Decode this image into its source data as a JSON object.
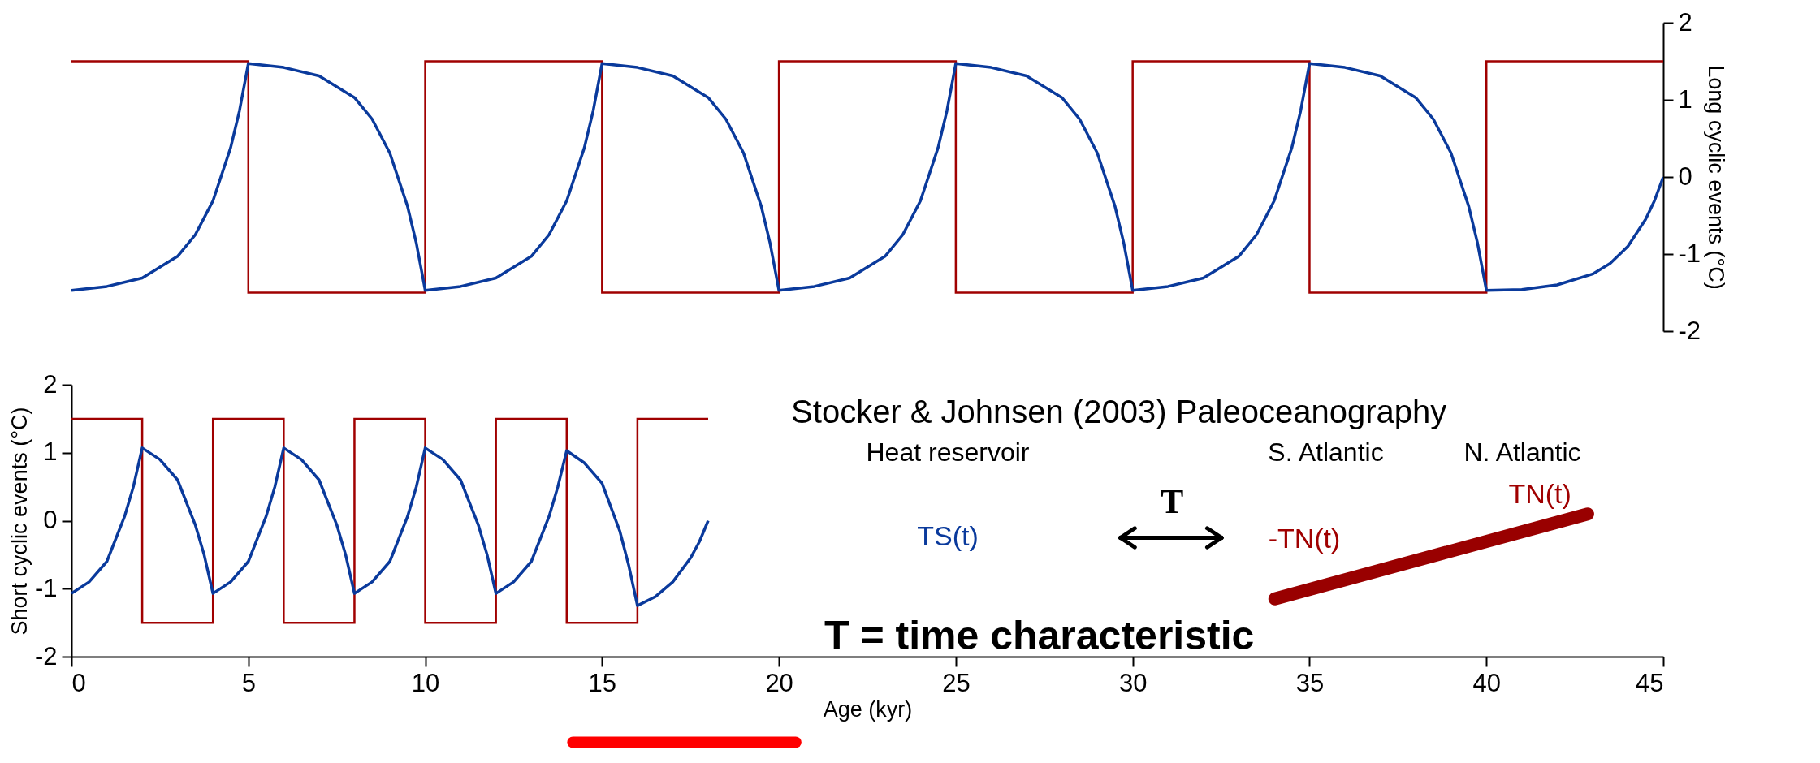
{
  "chart_data": [
    {
      "type": "line",
      "xlim": [
        0,
        45
      ],
      "tick_labels": "y",
      "y2label": "Long cyclic events (°C)",
      "y2lim": [
        -2,
        2
      ],
      "y2ticks": [
        -2,
        -1,
        0,
        1,
        2
      ],
      "grid": false,
      "series": [
        {
          "type": "step",
          "axis": "y2",
          "color": "#a00000",
          "x": [
            0,
            5,
            10,
            15,
            20,
            25,
            30,
            35,
            40,
            45
          ],
          "values": [
            1.5,
            -1.5,
            1.5,
            -1.5,
            1.5,
            -1.5,
            1.5,
            -1.5,
            1.5,
            1.5
          ]
        },
        {
          "type": "line",
          "axis": "y2",
          "color": "#0a3a9c",
          "x": [
            0,
            1,
            2,
            3,
            3.5,
            4,
            4.5,
            4.75,
            5,
            6,
            7,
            8,
            8.5,
            9,
            9.5,
            9.75,
            10,
            11,
            12,
            13,
            13.5,
            14,
            14.5,
            14.75,
            15,
            16,
            17,
            18,
            18.5,
            19,
            19.5,
            19.75,
            20,
            21,
            22,
            23,
            23.5,
            24,
            24.5,
            24.75,
            25,
            26,
            27,
            28,
            28.5,
            29,
            29.5,
            29.75,
            30,
            31,
            32,
            33,
            33.5,
            34,
            34.5,
            34.75,
            35,
            36,
            37,
            38,
            38.5,
            39,
            39.5,
            39.75,
            40,
            41,
            42,
            43,
            43.5,
            44,
            44.5,
            44.75,
            45
          ],
          "values": [
            -1.47,
            -1.42,
            -1.31,
            -1.03,
            -0.75,
            -0.31,
            0.38,
            0.86,
            1.47,
            1.42,
            1.31,
            1.03,
            0.75,
            0.31,
            -0.38,
            -0.86,
            -1.47,
            -1.42,
            -1.31,
            -1.03,
            -0.75,
            -0.31,
            0.38,
            0.86,
            1.47,
            1.42,
            1.31,
            1.03,
            0.75,
            0.31,
            -0.38,
            -0.86,
            -1.47,
            -1.42,
            -1.31,
            -1.03,
            -0.75,
            -0.31,
            0.38,
            0.86,
            1.47,
            1.42,
            1.31,
            1.03,
            0.75,
            0.31,
            -0.38,
            -0.86,
            -1.47,
            -1.42,
            -1.31,
            -1.03,
            -0.75,
            -0.31,
            0.38,
            0.86,
            1.47,
            1.42,
            1.31,
            1.03,
            0.75,
            0.31,
            -0.38,
            -0.86,
            -1.47,
            -1.46,
            -1.4,
            -1.26,
            -1.12,
            -0.9,
            -0.55,
            -0.31,
            0
          ]
        }
      ]
    },
    {
      "type": "line",
      "xlabel": "Age (kyr)",
      "ylabel": "Short cyclic events (°C)",
      "xlim": [
        0,
        45
      ],
      "xticks": [
        0,
        5,
        10,
        15,
        20,
        25,
        30,
        35,
        40,
        45
      ],
      "ylim": [
        -2,
        2
      ],
      "yticks": [
        -2,
        -1,
        0,
        1,
        2
      ],
      "grid": false,
      "annotations": [
        "Stocker & Johnsen (2003) Paleoceanography",
        "Heat reservoir",
        "S. Atlantic",
        "N. Atlantic",
        "TS(t)",
        "T",
        "-TN(t)",
        "TN(t)",
        "T = time characteristic"
      ],
      "series": [
        {
          "type": "step",
          "color": "#a00000",
          "x": [
            0,
            2,
            4,
            6,
            8,
            10,
            12,
            14,
            16,
            18
          ],
          "values": [
            1.5,
            -1.5,
            1.5,
            -1.5,
            1.5,
            -1.5,
            1.5,
            -1.5,
            1.5,
            1.5
          ]
        },
        {
          "type": "line",
          "color": "#0a3a9c",
          "x": [
            0,
            0.5,
            1,
            1.5,
            1.75,
            2,
            2.5,
            3,
            3.5,
            3.75,
            4,
            4.5,
            5,
            5.5,
            5.75,
            6,
            6.5,
            7,
            7.5,
            7.75,
            8,
            8.5,
            9,
            9.5,
            9.75,
            10,
            10.5,
            11,
            11.5,
            11.75,
            12,
            12.5,
            13,
            13.5,
            13.75,
            14,
            14.5,
            15,
            15.5,
            15.75,
            16,
            16.5,
            17,
            17.5,
            17.75,
            18
          ],
          "values": [
            -1.07,
            -0.9,
            -0.6,
            0.06,
            0.5,
            1.07,
            0.9,
            0.6,
            -0.06,
            -0.5,
            -1.07,
            -0.9,
            -0.6,
            0.06,
            0.5,
            1.07,
            0.9,
            0.6,
            -0.06,
            -0.5,
            -1.07,
            -0.9,
            -0.6,
            0.06,
            0.5,
            1.07,
            0.9,
            0.6,
            -0.06,
            -0.5,
            -1.07,
            -0.9,
            -0.6,
            0.06,
            0.5,
            1.03,
            0.85,
            0.55,
            -0.15,
            -0.65,
            -1.25,
            -1.12,
            -0.9,
            -0.55,
            -0.31,
            0
          ]
        }
      ]
    }
  ]
}
